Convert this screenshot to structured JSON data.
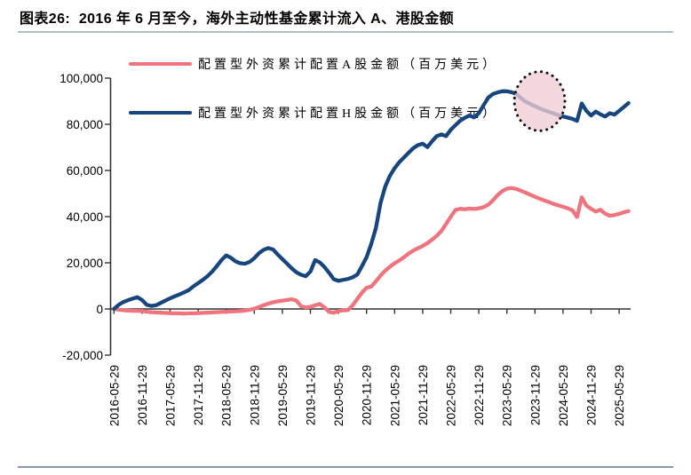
{
  "title": "图表26:  2016 年 6 月至今，海外主动性基金累计流入 A、港股金额",
  "legend": [
    {
      "label": "配置型外资累计配置A股金额（百万美元）",
      "color": "#f0737e"
    },
    {
      "label": "配置型外资累计配置H股金额（百万美元）",
      "color": "#17457d"
    }
  ],
  "colors": {
    "a_share_line": "#f0737e",
    "h_share_line": "#17457d",
    "axis": "#333333",
    "annotation_fill": "#f0cdd3",
    "annotation_border": "#111111",
    "title_rule": "#b2bfd3",
    "bottom_rule": "#8699ae"
  },
  "chart_data": {
    "type": "line",
    "title": "图表26:  2016 年 6 月至今，海外主动性基金累计流入 A、港股金额",
    "xlabel": "",
    "ylabel": "",
    "unit": "百万美元",
    "x_unit": "months since 2016-05-29",
    "x_start": "2016-05-29",
    "x_tick_every_months": 6,
    "x_tick_labels": [
      "2016-05-29",
      "2016-11-29",
      "2017-05-29",
      "2017-11-29",
      "2018-05-29",
      "2018-11-29",
      "2019-05-29",
      "2019-11-29",
      "2020-05-29",
      "2020-11-29",
      "2021-05-29",
      "2021-11-29",
      "2022-05-29",
      "2022-11-29",
      "2023-05-29",
      "2023-11-29",
      "2024-05-29",
      "2024-11-29",
      "2025-05-29"
    ],
    "ylim": [
      -20000,
      100000
    ],
    "y_ticks": [
      100000,
      80000,
      60000,
      40000,
      20000,
      0,
      -20000
    ],
    "grid": false,
    "legend_position": "top-left",
    "series": [
      {
        "name": "配置型外资累计配置A股金额（百万美元）",
        "color": "#f0737e",
        "values": [
          0,
          -300,
          -500,
          -700,
          -800,
          -800,
          -900,
          -1200,
          -1400,
          -1500,
          -1600,
          -1700,
          -1800,
          -1900,
          -1900,
          -2000,
          -1900,
          -1900,
          -1800,
          -1700,
          -1600,
          -1500,
          -1400,
          -1300,
          -1200,
          -1100,
          -1000,
          -900,
          -700,
          -400,
          100,
          800,
          1600,
          2300,
          2900,
          3300,
          3600,
          3900,
          4200,
          3600,
          1200,
          700,
          900,
          1600,
          2200,
          700,
          -1300,
          -1600,
          -900,
          -600,
          -500,
          1500,
          4300,
          7000,
          9200,
          9700,
          12000,
          14500,
          16600,
          18300,
          19800,
          21000,
          22400,
          24000,
          25300,
          26300,
          27300,
          28500,
          30000,
          31700,
          33800,
          36800,
          40000,
          42900,
          43400,
          43200,
          43500,
          43300,
          43600,
          44100,
          45100,
          47000,
          49300,
          51000,
          52100,
          52400,
          52000,
          51200,
          50400,
          49500,
          48600,
          47800,
          47000,
          46300,
          45500,
          44900,
          44300,
          43600,
          42800,
          39800,
          48400,
          44800,
          43400,
          42200,
          43000,
          41300,
          40400,
          40700,
          41200,
          41900,
          42400
        ]
      },
      {
        "name": "配置型外资累计配置H股金额（百万美元）",
        "color": "#17457d",
        "values": [
          0,
          1800,
          3000,
          3800,
          4500,
          5100,
          3900,
          1800,
          1300,
          1600,
          2600,
          3600,
          4600,
          5500,
          6300,
          7200,
          8200,
          9800,
          11200,
          12600,
          14200,
          16200,
          18600,
          21200,
          23200,
          22200,
          20600,
          19800,
          19600,
          20400,
          22000,
          24200,
          25600,
          26400,
          25800,
          23600,
          21600,
          19600,
          17600,
          15900,
          14800,
          14200,
          16200,
          21200,
          20200,
          18200,
          15600,
          12900,
          12200,
          12600,
          13000,
          13700,
          14900,
          18500,
          22400,
          28200,
          35000,
          46000,
          53100,
          57700,
          61000,
          63600,
          65600,
          67700,
          69700,
          71000,
          71600,
          70100,
          72600,
          74900,
          75600,
          74900,
          77600,
          79600,
          81500,
          82800,
          83800,
          83000,
          84800,
          88200,
          91500,
          93100,
          93800,
          94300,
          94300,
          93900,
          93200,
          91400,
          89800,
          88800,
          87800,
          86900,
          86100,
          85400,
          84700,
          84000,
          83400,
          82900,
          82400,
          81500,
          89000,
          85800,
          83800,
          85500,
          84300,
          83400,
          84800,
          84200,
          85800,
          87500,
          89200
        ]
      }
    ],
    "annotation_ellipse": {
      "description": "dotted circle highlighting H-share decline from 2023-07 to 2024-06",
      "center_month": 91,
      "center_value": 90000,
      "rx_months": 5.4,
      "ry_value": 12800
    }
  }
}
